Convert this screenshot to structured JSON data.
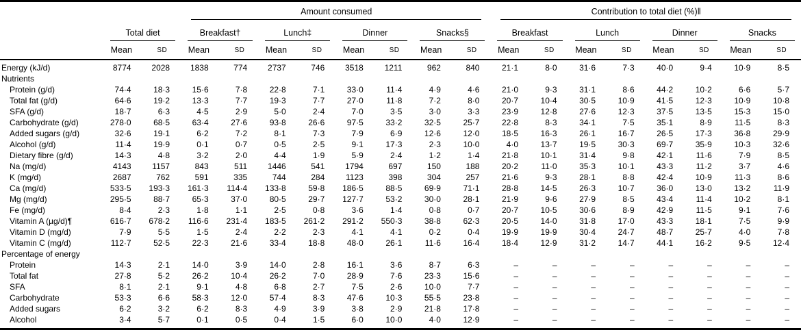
{
  "table": {
    "top_groups": {
      "amount": "Amount consumed",
      "contribution": "Contribution to total diet (%)‖"
    },
    "groups": [
      "Total diet",
      "Breakfast†",
      "Lunch‡",
      "Dinner",
      "Snacks§",
      "Breakfast",
      "Lunch",
      "Dinner",
      "Snacks"
    ],
    "mean_label": "Mean",
    "sd_label": "SD",
    "rows": [
      {
        "label": "Energy (kJ/d)",
        "type": "data",
        "indent": false,
        "values": [
          "8774",
          "2028",
          "1838",
          "774",
          "2737",
          "746",
          "3518",
          "1211",
          "962",
          "840",
          "21·1",
          "8·0",
          "31·6",
          "7·3",
          "40·0",
          "9·4",
          "10·9",
          "8·5"
        ]
      },
      {
        "label": "Nutrients",
        "type": "section",
        "indent": false,
        "values": []
      },
      {
        "label": "Protein (g/d)",
        "type": "data",
        "indent": true,
        "values": [
          "74·4",
          "18·3",
          "15·6",
          "7·8",
          "22·8",
          "7·1",
          "33·0",
          "11·4",
          "4·9",
          "4·6",
          "21·0",
          "9·3",
          "31·1",
          "8·6",
          "44·2",
          "10·2",
          "6·6",
          "5·7"
        ]
      },
      {
        "label": "Total fat (g/d)",
        "type": "data",
        "indent": true,
        "values": [
          "64·6",
          "19·2",
          "13·3",
          "7·7",
          "19·3",
          "7·7",
          "27·0",
          "11·8",
          "7·2",
          "8·0",
          "20·7",
          "10·4",
          "30·5",
          "10·9",
          "41·5",
          "12·3",
          "10·9",
          "10·8"
        ]
      },
      {
        "label": "SFA (g/d)",
        "type": "data",
        "indent": true,
        "values": [
          "18·7",
          "6·3",
          "4·5",
          "2·9",
          "5·0",
          "2·4",
          "7·0",
          "3·5",
          "3·0",
          "3·3",
          "23·9",
          "12·8",
          "27·6",
          "12·3",
          "37·5",
          "13·5",
          "15·3",
          "15·0"
        ]
      },
      {
        "label": "Carbohydrate (g/d)",
        "type": "data",
        "indent": true,
        "values": [
          "278·0",
          "68·5",
          "63·4",
          "27·6",
          "93·8",
          "26·6",
          "97·5",
          "33·2",
          "32·5",
          "25·7",
          "22·8",
          "8·3",
          "34·1",
          "7·5",
          "35·1",
          "8·9",
          "11·5",
          "8·3"
        ]
      },
      {
        "label": "Added sugars (g/d)",
        "type": "data",
        "indent": true,
        "values": [
          "32·6",
          "19·1",
          "6·2",
          "7·2",
          "8·1",
          "7·3",
          "7·9",
          "6·9",
          "12·6",
          "12·0",
          "18·5",
          "16·3",
          "26·1",
          "16·7",
          "26·5",
          "17·3",
          "36·8",
          "29·9"
        ]
      },
      {
        "label": "Alcohol (g/d)",
        "type": "data",
        "indent": true,
        "values": [
          "11·4",
          "19·9",
          "0·1",
          "0·7",
          "0·5",
          "2·5",
          "9·1",
          "17·3",
          "2·3",
          "10·0",
          "4·0",
          "13·7",
          "19·5",
          "30·3",
          "69·7",
          "35·9",
          "10·3",
          "32·6"
        ]
      },
      {
        "label": "Dietary fibre (g/d)",
        "type": "data",
        "indent": true,
        "values": [
          "14·3",
          "4·8",
          "3·2",
          "2·0",
          "4·4",
          "1·9",
          "5·9",
          "2·4",
          "1·2",
          "1·4",
          "21·8",
          "10·1",
          "31·4",
          "9·8",
          "42·1",
          "11·6",
          "7·9",
          "8·5"
        ]
      },
      {
        "label": "Na (mg/d)",
        "type": "data",
        "indent": true,
        "values": [
          "4143",
          "1157",
          "843",
          "511",
          "1446",
          "541",
          "1794",
          "697",
          "150",
          "188",
          "20·2",
          "11·0",
          "35·3",
          "10·1",
          "43·3",
          "11·2",
          "3·7",
          "4·6"
        ]
      },
      {
        "label": "K (mg/d)",
        "type": "data",
        "indent": true,
        "values": [
          "2687",
          "762",
          "591",
          "335",
          "744",
          "284",
          "1123",
          "398",
          "304",
          "257",
          "21·6",
          "9·3",
          "28·1",
          "8·8",
          "42·4",
          "10·9",
          "11·3",
          "8·6"
        ]
      },
      {
        "label": "Ca (mg/d)",
        "type": "data",
        "indent": true,
        "values": [
          "533·5",
          "193·3",
          "161·3",
          "114·4",
          "133·8",
          "59·8",
          "186·5",
          "88·5",
          "69·9",
          "71·1",
          "28·8",
          "14·5",
          "26·3",
          "10·7",
          "36·0",
          "13·0",
          "13·2",
          "11·9"
        ]
      },
      {
        "label": "Mg (mg/d)",
        "type": "data",
        "indent": true,
        "values": [
          "295·5",
          "88·7",
          "65·3",
          "37·0",
          "80·5",
          "29·7",
          "127·7",
          "53·2",
          "30·0",
          "28·1",
          "21·9",
          "9·6",
          "27·9",
          "8·5",
          "43·4",
          "11·4",
          "10·2",
          "8·1"
        ]
      },
      {
        "label": "Fe (mg/d)",
        "type": "data",
        "indent": true,
        "values": [
          "8·4",
          "2·3",
          "1·8",
          "1·1",
          "2·5",
          "0·8",
          "3·6",
          "1·4",
          "0·8",
          "0·7",
          "20·7",
          "10·5",
          "30·6",
          "8·9",
          "42·9",
          "11·5",
          "9·1",
          "7·6"
        ]
      },
      {
        "label": "Vitamin A (µg/d)¶",
        "type": "data",
        "indent": true,
        "values": [
          "616·7",
          "678·2",
          "116·6",
          "231·4",
          "183·5",
          "261·2",
          "291·2",
          "550·3",
          "38·8",
          "62·3",
          "20·5",
          "14·0",
          "31·8",
          "17·0",
          "43·3",
          "18·1",
          "7·5",
          "9·9"
        ]
      },
      {
        "label": "Vitamin D (mg/d)",
        "type": "data",
        "indent": true,
        "values": [
          "7·9",
          "5·5",
          "1·5",
          "2·4",
          "2·2",
          "2·3",
          "4·1",
          "4·1",
          "0·2",
          "0·4",
          "19·9",
          "19·9",
          "30·4",
          "24·7",
          "48·7",
          "25·7",
          "4·0",
          "7·8"
        ]
      },
      {
        "label": "Vitamin C (mg/d)",
        "type": "data",
        "indent": true,
        "values": [
          "112·7",
          "52·5",
          "22·3",
          "21·6",
          "33·4",
          "18·8",
          "48·0",
          "26·1",
          "11·6",
          "16·4",
          "18·4",
          "12·9",
          "31·2",
          "14·7",
          "44·1",
          "16·2",
          "9·5",
          "12·4"
        ]
      },
      {
        "label": "Percentage of energy",
        "type": "section",
        "indent": false,
        "values": []
      },
      {
        "label": "Protein",
        "type": "data",
        "indent": true,
        "values": [
          "14·3",
          "2·1",
          "14·0",
          "3·9",
          "14·0",
          "2·8",
          "16·1",
          "3·6",
          "8·7",
          "6·3",
          "–",
          "–",
          "–",
          "–",
          "–",
          "–",
          "–",
          "–"
        ]
      },
      {
        "label": "Total fat",
        "type": "data",
        "indent": true,
        "values": [
          "27·8",
          "5·2",
          "26·2",
          "10·4",
          "26·2",
          "7·0",
          "28·9",
          "7·6",
          "23·3",
          "15·6",
          "–",
          "–",
          "–",
          "–",
          "–",
          "–",
          "–",
          "–"
        ]
      },
      {
        "label": "SFA",
        "type": "data",
        "indent": true,
        "values": [
          "8·1",
          "2·1",
          "9·1",
          "4·8",
          "6·8",
          "2·7",
          "7·5",
          "2·6",
          "10·0",
          "7·7",
          "–",
          "–",
          "–",
          "–",
          "–",
          "–",
          "–",
          "–"
        ]
      },
      {
        "label": "Carbohydrate",
        "type": "data",
        "indent": true,
        "values": [
          "53·3",
          "6·6",
          "58·3",
          "12·0",
          "57·4",
          "8·3",
          "47·6",
          "10·3",
          "55·5",
          "23·8",
          "–",
          "–",
          "–",
          "–",
          "–",
          "–",
          "–",
          "–"
        ]
      },
      {
        "label": "Added sugars",
        "type": "data",
        "indent": true,
        "values": [
          "6·2",
          "3·2",
          "6·2",
          "8·3",
          "4·9",
          "3·9",
          "3·8",
          "2·9",
          "21·8",
          "17·8",
          "–",
          "–",
          "–",
          "–",
          "–",
          "–",
          "–",
          "–"
        ]
      },
      {
        "label": "Alcohol",
        "type": "data",
        "indent": true,
        "values": [
          "3·4",
          "5·7",
          "0·1",
          "0·5",
          "0·4",
          "1·5",
          "6·0",
          "10·0",
          "4·0",
          "12·9",
          "–",
          "–",
          "–",
          "–",
          "–",
          "–",
          "–",
          "–"
        ]
      }
    ]
  }
}
